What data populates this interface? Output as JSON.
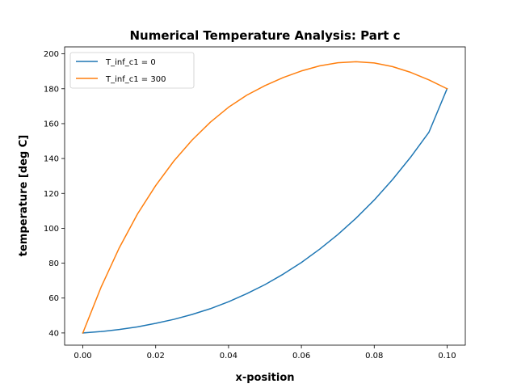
{
  "chart_data": {
    "type": "line",
    "title": "Numerical Temperature Analysis: Part c",
    "xlabel": "x-position",
    "ylabel": "temperature [deg C]",
    "xlim": [
      -0.005,
      0.105
    ],
    "ylim": [
      33,
      204
    ],
    "xticks": [
      0.0,
      0.02,
      0.04,
      0.06,
      0.08,
      0.1
    ],
    "xtick_labels": [
      "0.00",
      "0.02",
      "0.04",
      "0.06",
      "0.08",
      "0.10"
    ],
    "yticks": [
      40,
      60,
      80,
      100,
      120,
      140,
      160,
      180,
      200
    ],
    "ytick_labels": [
      "40",
      "60",
      "80",
      "100",
      "120",
      "140",
      "160",
      "180",
      "200"
    ],
    "grid": false,
    "legend_position": "top-left",
    "x": [
      0.0,
      0.005,
      0.01,
      0.015,
      0.02,
      0.025,
      0.03,
      0.035,
      0.04,
      0.045,
      0.05,
      0.055,
      0.06,
      0.065,
      0.07,
      0.075,
      0.08,
      0.085,
      0.09,
      0.095,
      0.1
    ],
    "series": [
      {
        "name": "T_inf_c1 = 0",
        "color": "#1f77b4",
        "values": [
          40,
          40.8,
          42.0,
          43.5,
          45.5,
          47.8,
          50.6,
          53.9,
          57.9,
          62.5,
          67.7,
          73.7,
          80.4,
          88.0,
          96.4,
          105.8,
          116.2,
          127.9,
          140.8,
          155.0,
          180
        ]
      },
      {
        "name": "T_inf_c1 = 300",
        "color": "#ff7f0e",
        "values": [
          40,
          66.2,
          88.8,
          108.2,
          124.5,
          138.6,
          150.6,
          160.8,
          169.4,
          176.3,
          181.8,
          186.4,
          190.2,
          193.1,
          194.9,
          195.5,
          194.8,
          192.7,
          189.4,
          185.1,
          180
        ]
      }
    ]
  }
}
